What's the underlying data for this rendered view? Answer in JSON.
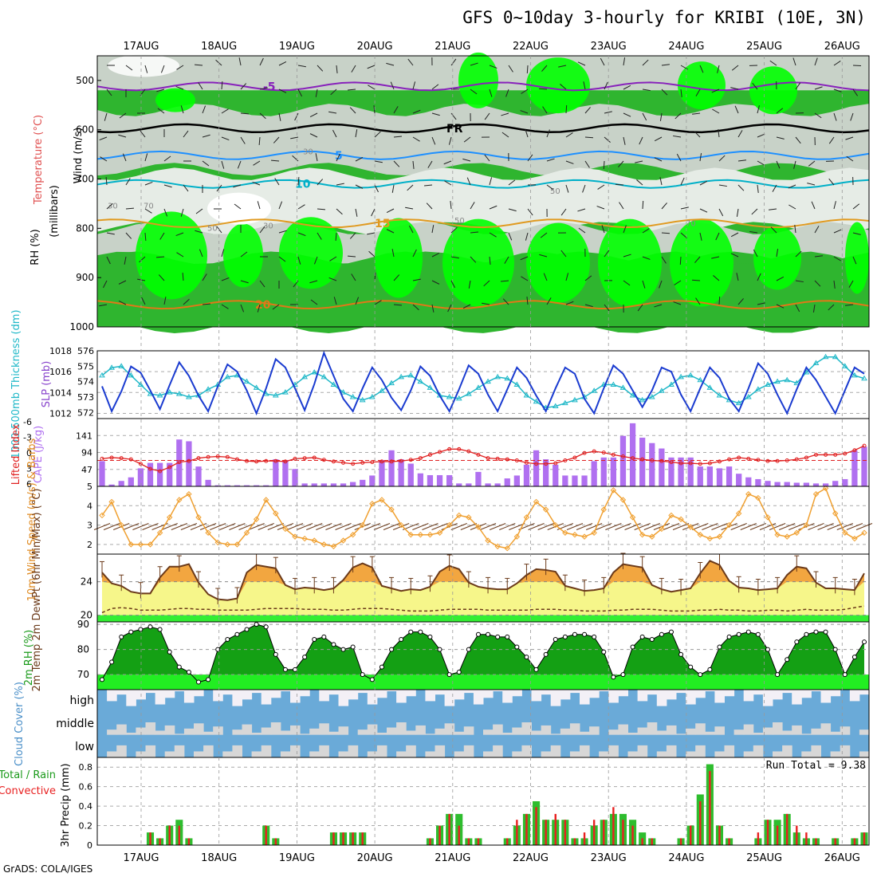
{
  "title": "GFS 0~10day 3-hourly for KRIBI (10E, 3N)",
  "footer": "GrADS: COLA/IGES",
  "colors": {
    "rh_dark": "#1a7a1a",
    "rh_mid": "#2fb52f",
    "rh_light": "#00ff00",
    "rh_grey": "#c8d2c8",
    "rh_pale": "#e6ece6",
    "temp_purple": "#8822bb",
    "temp_blue": "#1e90ff",
    "temp_cyan": "#00b0c8",
    "temp_orange": "#e09a20",
    "slp": "#1a3bd0",
    "thick": "#20b8c8",
    "cape": "#b070f0",
    "li": "#e02020",
    "wind10": "#f0a030",
    "temp_fill_orange": "#f2a640",
    "temp_fill_yellow": "#f6f68a",
    "cloud_blue": "#6aaad8",
    "cloud_grey": "#d7d7d7",
    "cloud_white": "#f3f0f6",
    "precip_green": "#2ebd2e",
    "precip_red": "#e82020"
  },
  "dates": [
    "17AUG",
    "18AUG",
    "19AUG",
    "20AUG",
    "21AUG",
    "22AUG",
    "23AUG",
    "24AUG",
    "25AUG",
    "26AUG"
  ],
  "chart_data": [
    {
      "id": "upper-air",
      "type": "heatmap",
      "ylabel": "(millibars)",
      "legend_labels": [
        "Wind (m/s)",
        "Temperature (°C)",
        "RH (%)"
      ],
      "y_ticks": [
        500,
        600,
        700,
        800,
        900,
        1000
      ],
      "ylim": [
        1000,
        450
      ],
      "isotherms": [
        {
          "label": "-5",
          "level": 512
        },
        {
          "label": "FR",
          "level": 597
        },
        {
          "label": "5",
          "level": 652
        },
        {
          "label": "10",
          "level": 710
        },
        {
          "label": "15",
          "level": 790
        },
        {
          "label": "20",
          "level": 955
        }
      ],
      "rh_contour_labels": [
        "30",
        "50",
        "70",
        "50",
        "30",
        "70",
        "50",
        "30"
      ]
    },
    {
      "id": "slp-thickness",
      "type": "line",
      "ylabel_left": "1000-500mb Thickness (dm)",
      "ylabel_right": "SLP (mb)",
      "left_ticks": [
        572,
        573,
        574,
        575,
        576
      ],
      "right_ticks": [
        1012,
        1014,
        1016,
        1018
      ],
      "ylim_slp": [
        1011.5,
        1018
      ],
      "ylim_thick": [
        571.6,
        576
      ],
      "series": [
        {
          "name": "SLP",
          "values": [
            1014.6,
            1012.2,
            1014.1,
            1016.5,
            1015.9,
            1014.2,
            1012.4,
            1014.7,
            1016.9,
            1015.6,
            1013.7,
            1012.2,
            1014.6,
            1016.7,
            1016.0,
            1014.2,
            1012.0,
            1014.4,
            1017.2,
            1016.4,
            1014.4,
            1012.3,
            1014.8,
            1017.8,
            1015.6,
            1013.4,
            1012.2,
            1014.4,
            1016.4,
            1015.2,
            1013.5,
            1012.3,
            1014.2,
            1016.5,
            1015.6,
            1013.7,
            1012.2,
            1014.3,
            1016.6,
            1015.8,
            1013.8,
            1012.2,
            1014.3,
            1016.4,
            1015.4,
            1013.7,
            1012.2,
            1014.4,
            1016.4,
            1015.8,
            1013.4,
            1012.0,
            1014.4,
            1016.6,
            1015.8,
            1014.2,
            1012.6,
            1014.2,
            1016.4,
            1016.0,
            1013.8,
            1012.2,
            1014.4,
            1016.4,
            1015.4,
            1013.4,
            1012.2,
            1014.4,
            1016.8,
            1015.8,
            1013.8,
            1012.0,
            1014.3,
            1016.4,
            1015.2,
            1013.6,
            1012.0,
            1014.2,
            1016.4,
            1015.8
          ]
        },
        {
          "name": "Thickness",
          "values": [
            574.4,
            574.9,
            575.0,
            574.4,
            573.8,
            573.2,
            573.1,
            573.3,
            573.2,
            573.0,
            573.1,
            573.5,
            573.8,
            574.3,
            574.4,
            574.0,
            573.6,
            573.2,
            573.1,
            573.3,
            573.8,
            574.3,
            574.6,
            574.3,
            573.8,
            573.3,
            573.0,
            572.8,
            573.0,
            573.4,
            573.9,
            574.3,
            574.4,
            574.0,
            573.6,
            573.1,
            573.0,
            572.9,
            573.2,
            573.6,
            574.0,
            574.3,
            574.2,
            573.8,
            573.1,
            572.7,
            572.3,
            572.4,
            572.6,
            572.8,
            573.0,
            573.4,
            573.8,
            573.8,
            573.6,
            573.1,
            572.8,
            573.0,
            573.4,
            573.8,
            574.3,
            574.4,
            574.1,
            573.6,
            573.1,
            572.8,
            572.6,
            573.0,
            573.5,
            573.8,
            574.0,
            574.1,
            573.9,
            574.6,
            575.2,
            575.6,
            575.6,
            575.0,
            574.4,
            574.2
          ]
        }
      ]
    },
    {
      "id": "cape-li",
      "type": "bar",
      "ylabel_left": "Lifted Index",
      "ylabel_right": "CAPE (J/kg)",
      "left_ticks": [
        "-6",
        "-3",
        "0",
        "3",
        "6"
      ],
      "right_ticks": [
        47,
        94,
        141
      ],
      "ylim_cape": [
        0,
        188
      ],
      "series": [
        {
          "name": "CAPE",
          "values": [
            70,
            5,
            15,
            25,
            50,
            65,
            65,
            65,
            130,
            125,
            55,
            18,
            3,
            3,
            3,
            3,
            3,
            3,
            75,
            73,
            48,
            8,
            8,
            8,
            8,
            8,
            12,
            18,
            30,
            73,
            100,
            75,
            63,
            36,
            31,
            31,
            31,
            8,
            8,
            40,
            8,
            8,
            22,
            30,
            60,
            100,
            75,
            60,
            30,
            30,
            30,
            70,
            80,
            80,
            140,
            175,
            135,
            120,
            105,
            80,
            80,
            80,
            55,
            55,
            50,
            55,
            35,
            25,
            20,
            15,
            12,
            12,
            10,
            10,
            8,
            8,
            15,
            20,
            100,
            110
          ]
        },
        {
          "name": "Lifted Index",
          "values": [
            -0.3,
            -0.5,
            -0.4,
            -0.2,
            0.6,
            1.5,
            1.9,
            1.2,
            0.3,
            0.1,
            -0.4,
            -0.6,
            -0.7,
            -0.6,
            -0.2,
            0.1,
            0.2,
            0.1,
            0.1,
            0.2,
            -0.3,
            -0.4,
            -0.5,
            -0.1,
            0.2,
            0.4,
            0.6,
            0.4,
            0.3,
            0.2,
            0.2,
            0.1,
            -0.1,
            -0.4,
            -1.0,
            -1.5,
            -2.0,
            -2.0,
            -1.6,
            -1.0,
            -0.4,
            -0.3,
            -0.2,
            0.0,
            0.4,
            0.6,
            0.6,
            0.5,
            0.0,
            -0.5,
            -1.3,
            -1.6,
            -1.4,
            -1.0,
            -0.7,
            -0.4,
            -0.2,
            0.0,
            0.1,
            0.3,
            0.5,
            0.5,
            0.6,
            0.5,
            0.2,
            -0.2,
            -0.5,
            -0.3,
            -0.1,
            0.1,
            0.1,
            0.0,
            -0.2,
            -0.5,
            -1.0,
            -1.0,
            -1.0,
            -1.2,
            -1.8,
            -2.6
          ]
        }
      ]
    },
    {
      "id": "wind10m",
      "type": "line",
      "ylabel": "10m Wind Speed (m/s) & Barbs",
      "y_ticks": [
        2,
        3,
        4,
        5
      ],
      "ylim": [
        1.5,
        5
      ],
      "series": [
        {
          "name": "Wind Speed",
          "values": [
            3.5,
            4.2,
            3.0,
            2.0,
            2.0,
            2.0,
            2.6,
            3.4,
            4.3,
            4.6,
            3.4,
            2.6,
            2.1,
            2.0,
            2.0,
            2.6,
            3.3,
            4.3,
            3.6,
            2.8,
            2.4,
            2.3,
            2.2,
            2.0,
            1.9,
            2.2,
            2.5,
            3.0,
            4.1,
            4.3,
            3.8,
            3.0,
            2.5,
            2.5,
            2.5,
            2.6,
            3.0,
            3.5,
            3.4,
            2.9,
            2.2,
            1.9,
            1.8,
            2.4,
            3.4,
            4.2,
            3.8,
            3.0,
            2.6,
            2.5,
            2.4,
            2.6,
            3.8,
            4.8,
            4.3,
            3.4,
            2.5,
            2.4,
            2.8,
            3.5,
            3.3,
            2.9,
            2.5,
            2.3,
            2.4,
            3.0,
            3.6,
            4.6,
            4.4,
            3.4,
            2.5,
            2.4,
            2.6,
            3.0,
            4.6,
            4.9,
            3.6,
            2.6,
            2.3,
            2.6
          ]
        }
      ]
    },
    {
      "id": "temp2m",
      "type": "area",
      "ylabel": "2m Temp 2m DewPt (6hr Min/Max) (°C)",
      "y_ticks": [
        20,
        24
      ],
      "ylim": [
        19.2,
        27.3
      ],
      "series": [
        {
          "name": "Temperature",
          "values": [
            25.1,
            23.8,
            23.5,
            22.8,
            22.6,
            22.6,
            24.5,
            25.8,
            25.8,
            26.1,
            23.9,
            22.5,
            21.9,
            21.8,
            22.0,
            25.1,
            26.0,
            25.8,
            25.6,
            23.6,
            23.1,
            23.3,
            23.2,
            23.0,
            23.2,
            24.2,
            25.7,
            26.2,
            25.7,
            23.5,
            23.2,
            22.9,
            23.1,
            23.0,
            23.4,
            25.2,
            25.9,
            25.5,
            23.9,
            23.4,
            23.2,
            23.1,
            23.1,
            23.8,
            24.8,
            25.5,
            25.4,
            25.2,
            23.5,
            23.2,
            22.9,
            23.0,
            23.2,
            25.1,
            26.1,
            25.9,
            25.7,
            23.6,
            23.1,
            22.8,
            23.0,
            23.2,
            25.0,
            26.5,
            26.0,
            24.1,
            23.3,
            23.2,
            23.0,
            23.1,
            23.2,
            24.8,
            25.8,
            25.6,
            23.9,
            23.2,
            23.2,
            23.1,
            23.0,
            25.0
          ]
        },
        {
          "name": "DewPoint",
          "values": [
            20.3,
            20.8,
            20.9,
            20.8,
            20.6,
            20.6,
            20.6,
            20.7,
            20.8,
            20.8,
            20.7,
            20.7,
            20.6,
            20.6,
            20.6,
            20.6,
            20.7,
            20.8,
            20.8,
            20.8,
            20.8,
            20.7,
            20.7,
            20.7,
            20.6,
            20.6,
            20.7,
            20.8,
            20.8,
            20.8,
            20.7,
            20.6,
            20.5,
            20.5,
            20.5,
            20.6,
            20.7,
            20.7,
            20.7,
            20.7,
            20.6,
            20.6,
            20.6,
            20.6,
            20.6,
            20.7,
            20.7,
            20.7,
            20.6,
            20.6,
            20.5,
            20.5,
            20.5,
            20.6,
            20.6,
            20.7,
            20.7,
            20.7,
            20.6,
            20.5,
            20.5,
            20.5,
            20.6,
            20.6,
            20.7,
            20.6,
            20.6,
            20.5,
            20.5,
            20.6,
            20.6,
            20.5,
            20.6,
            20.7,
            20.6,
            20.6,
            20.6,
            20.7,
            20.9,
            21.1
          ]
        }
      ]
    },
    {
      "id": "rh2m",
      "type": "area",
      "ylabel": "2m RH (%)",
      "y_ticks": [
        70,
        80,
        90
      ],
      "ylim": [
        64,
        91
      ],
      "series": [
        {
          "name": "RH",
          "values": [
            68,
            75,
            85,
            87,
            88,
            89,
            88,
            79,
            73,
            71,
            67,
            68,
            80,
            84,
            86,
            88,
            90,
            89,
            78,
            72,
            72,
            77,
            84,
            85,
            82,
            80,
            81,
            70,
            68,
            73,
            80,
            84,
            87,
            87,
            85,
            80,
            70,
            71,
            80,
            86,
            86,
            85,
            85,
            81,
            77,
            72,
            78,
            84,
            85,
            86,
            86,
            85,
            79,
            69,
            70,
            81,
            85,
            84,
            86,
            87,
            78,
            73,
            70,
            72,
            81,
            85,
            86,
            87,
            86,
            80,
            70,
            76,
            83,
            86,
            87,
            87,
            80,
            70,
            77,
            83
          ]
        }
      ]
    },
    {
      "id": "cloud",
      "type": "heatmap",
      "ylabel": "Cloud Cover (%)",
      "layers": [
        "high",
        "middle",
        "low"
      ]
    },
    {
      "id": "precip",
      "type": "bar",
      "ylabel_left": "Total / Rain Convective",
      "ylabel": "3hr Precip (mm)",
      "y_ticks": [
        0,
        0.2,
        0.4,
        0.6,
        0.8
      ],
      "ylim": [
        0,
        0.9
      ],
      "run_total_label": "Run Total = 9.38",
      "series": [
        {
          "name": "Total",
          "values": [
            0,
            0,
            0,
            0,
            0,
            0.13,
            0.07,
            0.2,
            0.26,
            0.07,
            0,
            0,
            0,
            0,
            0,
            0,
            0,
            0.2,
            0.07,
            0,
            0,
            0,
            0,
            0,
            0.13,
            0.13,
            0.13,
            0.13,
            0,
            0,
            0,
            0,
            0,
            0,
            0.07,
            0.2,
            0.32,
            0.32,
            0.07,
            0.07,
            0,
            0,
            0.07,
            0.2,
            0.32,
            0.45,
            0.26,
            0.26,
            0.26,
            0.07,
            0.07,
            0.2,
            0.26,
            0.32,
            0.32,
            0.26,
            0.13,
            0.07,
            0,
            0,
            0.07,
            0.2,
            0.52,
            0.83,
            0.2,
            0.07,
            0,
            0,
            0.07,
            0.26,
            0.26,
            0.32,
            0.13,
            0.07,
            0.07,
            0,
            0.07,
            0,
            0.07,
            0.13
          ]
        },
        {
          "name": "Convective",
          "values": [
            0,
            0,
            0,
            0,
            0,
            0.13,
            0.07,
            0.2,
            0.2,
            0.07,
            0,
            0,
            0,
            0,
            0,
            0,
            0,
            0.2,
            0.07,
            0,
            0,
            0,
            0,
            0,
            0.13,
            0.13,
            0.13,
            0.13,
            0,
            0,
            0,
            0,
            0,
            0,
            0.07,
            0.2,
            0.32,
            0.2,
            0.07,
            0.07,
            0,
            0,
            0.07,
            0.26,
            0.32,
            0.39,
            0.26,
            0.32,
            0.26,
            0.07,
            0.13,
            0.26,
            0.26,
            0.39,
            0.26,
            0.2,
            0.07,
            0.07,
            0,
            0,
            0.07,
            0.2,
            0.45,
            0.76,
            0.2,
            0.07,
            0,
            0,
            0.13,
            0.26,
            0.2,
            0.32,
            0.2,
            0.13,
            0.07,
            0,
            0.07,
            0,
            0.07,
            0.13
          ]
        }
      ]
    }
  ]
}
